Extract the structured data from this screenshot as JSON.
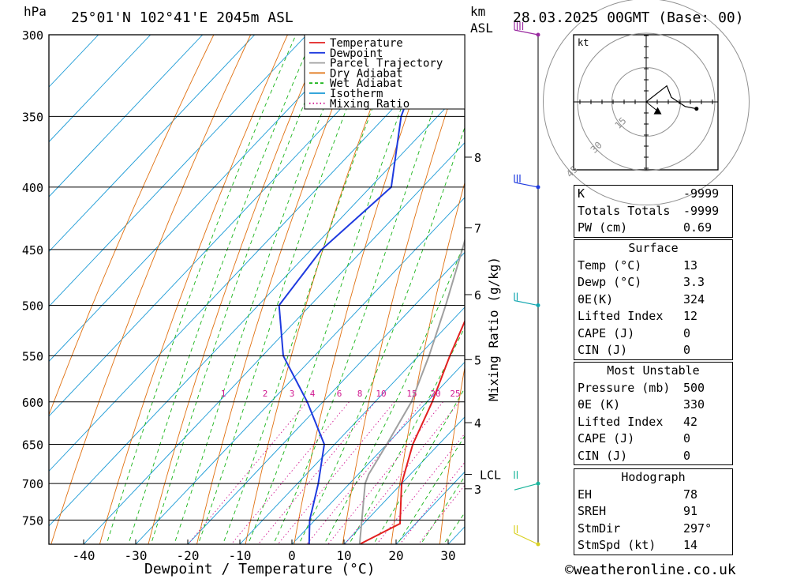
{
  "header": {
    "pressure_unit": "hPa",
    "location": "25°01'N 102°41'E 2045m ASL",
    "km_unit": "km",
    "asl_label": "ASL",
    "datetime": "28.03.2025 00GMT (Base: 00)"
  },
  "footer": {
    "xlabel": "Dewpoint / Temperature (°C)",
    "credit": "©weatheronline.co.uk"
  },
  "chart_data": [
    {
      "type": "line",
      "title": "",
      "xlabel": "Dewpoint / Temperature (°C)",
      "ylabel": "hPa",
      "y2label": "Mixing Ratio (g/kg)",
      "x_ticks": [
        -40,
        -30,
        -20,
        -10,
        0,
        10,
        20,
        30
      ],
      "y_ticks": [
        300,
        350,
        400,
        450,
        500,
        550,
        600,
        650,
        700,
        750
      ],
      "ylim": [
        300,
        785
      ],
      "y_scale": "log, skew-T",
      "km_ticks": [
        {
          "km": "8",
          "p": 378
        },
        {
          "km": "7",
          "p": 432
        },
        {
          "km": "6",
          "p": 490
        },
        {
          "km": "5",
          "p": 554
        },
        {
          "km": "4",
          "p": 624
        },
        {
          "km": "LCL",
          "p": 688
        },
        {
          "km": "3",
          "p": 707
        }
      ],
      "mixing_ratio_labels": [
        "1",
        "2",
        "3",
        "4",
        "6",
        "8",
        "10",
        "15",
        "20",
        "25"
      ],
      "legend": {
        "placement": "top-right",
        "entries": [
          {
            "name": "Temperature",
            "color": "#e32020",
            "style": "solid"
          },
          {
            "name": "Dewpoint",
            "color": "#1e3adf",
            "style": "solid"
          },
          {
            "name": "Parcel Trajectory",
            "color": "#a0a0a0",
            "style": "solid"
          },
          {
            "name": "Dry Adiabat",
            "color": "#e07010",
            "style": "solid"
          },
          {
            "name": "Wet Adiabat",
            "color": "#18b418",
            "style": "dashed"
          },
          {
            "name": "Isotherm",
            "color": "#1a9ad6",
            "style": "solid"
          },
          {
            "name": "Mixing Ratio",
            "color": "#d01890",
            "style": "dotted"
          }
        ]
      },
      "series": [
        {
          "name": "Temperature",
          "points": [
            [
              785,
              13
            ],
            [
              755,
              17
            ],
            [
              700,
              10
            ],
            [
              650,
              5
            ],
            [
              600,
              1
            ],
            [
              550,
              -4
            ],
            [
              500,
              -9
            ],
            [
              450,
              -16
            ],
            [
              400,
              -24
            ],
            [
              350,
              -33
            ],
            [
              300,
              -43
            ]
          ]
        },
        {
          "name": "Dewpoint",
          "points": [
            [
              785,
              3.3
            ],
            [
              750,
              -1
            ],
            [
              700,
              -6
            ],
            [
              650,
              -12
            ],
            [
              600,
              -23
            ],
            [
              550,
              -36
            ],
            [
              500,
              -46
            ],
            [
              450,
              -48
            ],
            [
              400,
              -46
            ],
            [
              350,
              -57
            ],
            [
              300,
              -66
            ]
          ]
        },
        {
          "name": "Parcel Trajectory",
          "points": [
            [
              785,
              13
            ],
            [
              700,
              3
            ],
            [
              688,
              2
            ],
            [
              650,
              0
            ],
            [
              600,
              -3
            ],
            [
              550,
              -8
            ],
            [
              500,
              -14
            ],
            [
              450,
              -21
            ],
            [
              400,
              -29
            ],
            [
              350,
              -39
            ],
            [
              300,
              -50
            ]
          ]
        }
      ],
      "wind_barbs": [
        {
          "p": 300,
          "color": "#9a2aa0"
        },
        {
          "p": 400,
          "color": "#1e3adf"
        },
        {
          "p": 500,
          "color": "#11a6b0"
        },
        {
          "p": 700,
          "color": "#18b49a"
        },
        {
          "p": 785,
          "color": "#d9d020"
        }
      ]
    },
    {
      "type": "scatter",
      "title": "Hodograph",
      "unit_label": "kt",
      "ring_labels": [
        "15",
        "30",
        "45"
      ],
      "points_uv": [
        [
          0,
          0
        ],
        [
          9,
          7
        ],
        [
          11,
          2
        ],
        [
          17,
          -2
        ],
        [
          22,
          -3
        ]
      ],
      "storm_motion_uv": [
        5,
        -4
      ]
    }
  ],
  "indices": [
    {
      "label": "K",
      "value": "-9999"
    },
    {
      "label": "Totals Totals",
      "value": "-9999"
    },
    {
      "label": "PW (cm)",
      "value": "0.69"
    }
  ],
  "surface": {
    "title": "Surface",
    "rows": [
      {
        "label": "Temp (°C)",
        "value": "13"
      },
      {
        "label": "Dewp (°C)",
        "value": "3.3"
      },
      {
        "label": "θE(K)",
        "value": "324"
      },
      {
        "label": "Lifted Index",
        "value": "12"
      },
      {
        "label": "CAPE (J)",
        "value": "0"
      },
      {
        "label": "CIN (J)",
        "value": "0"
      }
    ]
  },
  "most_unstable": {
    "title": "Most Unstable",
    "rows": [
      {
        "label": "Pressure (mb)",
        "value": "500"
      },
      {
        "label": "θE (K)",
        "value": "330"
      },
      {
        "label": "Lifted Index",
        "value": "42"
      },
      {
        "label": "CAPE (J)",
        "value": "0"
      },
      {
        "label": "CIN (J)",
        "value": "0"
      }
    ]
  },
  "hodograph": {
    "title": "Hodograph",
    "rows": [
      {
        "label": "EH",
        "value": "78"
      },
      {
        "label": "SREH",
        "value": "91"
      },
      {
        "label": "StmDir",
        "value": "297°"
      },
      {
        "label": "StmSpd (kt)",
        "value": "14"
      }
    ]
  }
}
